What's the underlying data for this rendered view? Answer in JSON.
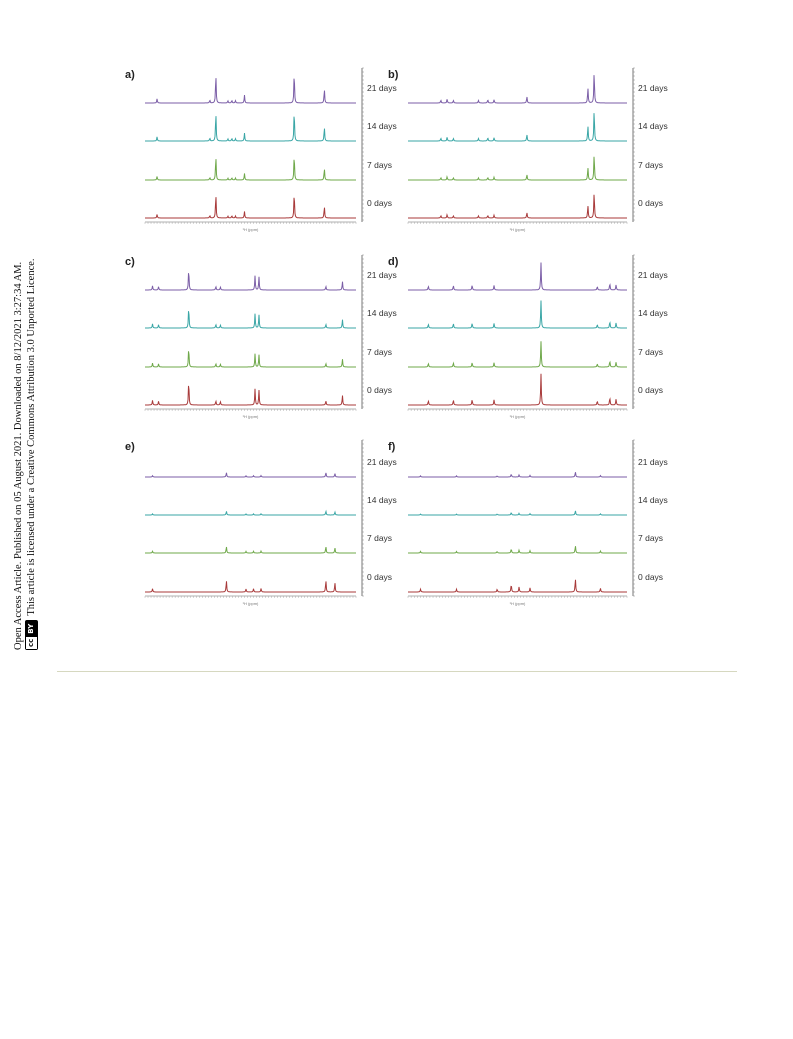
{
  "side_notice": {
    "line1": "Open Access Article. Published on 05 August 2021. Downloaded on 8/12/2021 3:27:34 AM.",
    "line2": "This article is licensed under a Creative Commons Attribution 3.0 Unported Licence.",
    "badge_cc": "cc",
    "badge_by": "BY"
  },
  "colors": {
    "day21": "#7b5ea7",
    "day14": "#3aa6a6",
    "day7": "#6fa84a",
    "day0": "#a83a3a"
  },
  "chart_data": [
    {
      "type": "line",
      "panel": "a)",
      "xlabel": "¹H (ppm)",
      "x_reversed": true,
      "xlim": [
        8.5,
        1.5
      ],
      "series_labels": [
        "21 days",
        "14 days",
        "7 days",
        "0 days"
      ],
      "peaks": [
        {
          "ppm": 8.1,
          "h": 0.15
        },
        {
          "ppm": 6.35,
          "h": 0.12
        },
        {
          "ppm": 6.15,
          "h": 1.0
        },
        {
          "ppm": 5.75,
          "h": 0.08
        },
        {
          "ppm": 5.62,
          "h": 0.08
        },
        {
          "ppm": 5.5,
          "h": 0.08
        },
        {
          "ppm": 5.2,
          "h": 0.25
        },
        {
          "ppm": 3.55,
          "h": 1.0
        },
        {
          "ppm": 2.55,
          "h": 0.45
        }
      ]
    },
    {
      "type": "line",
      "panel": "b)",
      "xlabel": "¹H (ppm)",
      "x_reversed": true,
      "xlim": [
        8.5,
        1.5
      ],
      "series_labels": [
        "21 days",
        "14 days",
        "7 days",
        "0 days"
      ],
      "peaks": [
        {
          "ppm": 7.45,
          "h": 0.1
        },
        {
          "ppm": 7.25,
          "h": 0.12
        },
        {
          "ppm": 7.05,
          "h": 0.1
        },
        {
          "ppm": 6.25,
          "h": 0.08
        },
        {
          "ppm": 5.95,
          "h": 0.1
        },
        {
          "ppm": 5.75,
          "h": 0.12
        },
        {
          "ppm": 4.7,
          "h": 0.25
        },
        {
          "ppm": 2.75,
          "h": 0.55
        },
        {
          "ppm": 2.55,
          "h": 1.0
        }
      ]
    },
    {
      "type": "line",
      "panel": "c)",
      "xlabel": "¹H (ppm)",
      "x_reversed": true,
      "xlim": [
        8.5,
        1.5
      ],
      "series_labels": [
        "21 days",
        "14 days",
        "7 days",
        "0 days"
      ],
      "peaks": [
        {
          "ppm": 8.25,
          "h": 0.15
        },
        {
          "ppm": 8.05,
          "h": 0.15
        },
        {
          "ppm": 7.05,
          "h": 1.0
        },
        {
          "ppm": 6.15,
          "h": 0.15
        },
        {
          "ppm": 6.0,
          "h": 0.15
        },
        {
          "ppm": 4.85,
          "h": 0.55
        },
        {
          "ppm": 4.72,
          "h": 0.6
        },
        {
          "ppm": 2.5,
          "h": 0.15
        },
        {
          "ppm": 1.95,
          "h": 0.3
        }
      ]
    },
    {
      "type": "line",
      "panel": "d)",
      "xlabel": "¹H (ppm)",
      "x_reversed": true,
      "xlim": [
        8.5,
        1.5
      ],
      "series_labels": [
        "21 days",
        "14 days",
        "7 days",
        "0 days"
      ],
      "peaks": [
        {
          "ppm": 7.85,
          "h": 0.15
        },
        {
          "ppm": 7.05,
          "h": 0.2
        },
        {
          "ppm": 6.45,
          "h": 0.2
        },
        {
          "ppm": 5.75,
          "h": 0.2
        },
        {
          "ppm": 4.25,
          "h": 1.0
        },
        {
          "ppm": 2.45,
          "h": 0.15
        },
        {
          "ppm": 2.05,
          "h": 0.3
        },
        {
          "ppm": 1.85,
          "h": 0.2
        }
      ]
    },
    {
      "type": "line",
      "panel": "e)",
      "xlabel": "¹H (ppm)",
      "x_reversed": true,
      "xlim": [
        8.5,
        1.5
      ],
      "series_labels": [
        "21 days",
        "14 days",
        "7 days",
        "0 days"
      ],
      "peaks": [
        {
          "ppm": 8.25,
          "h": 0.1
        },
        {
          "ppm": 5.8,
          "h": 0.4
        },
        {
          "ppm": 5.15,
          "h": 0.1
        },
        {
          "ppm": 4.9,
          "h": 0.1
        },
        {
          "ppm": 4.65,
          "h": 0.1
        },
        {
          "ppm": 2.5,
          "h": 0.4
        },
        {
          "ppm": 2.2,
          "h": 0.3
        }
      ]
    },
    {
      "type": "line",
      "panel": "f)",
      "xlabel": "¹H (ppm)",
      "x_reversed": true,
      "xlim": [
        8.5,
        1.5
      ],
      "series_labels": [
        "21 days",
        "14 days",
        "7 days",
        "0 days"
      ],
      "peaks": [
        {
          "ppm": 8.1,
          "h": 0.1
        },
        {
          "ppm": 6.95,
          "h": 0.08
        },
        {
          "ppm": 5.65,
          "h": 0.08
        },
        {
          "ppm": 5.2,
          "h": 0.25
        },
        {
          "ppm": 4.95,
          "h": 0.15
        },
        {
          "ppm": 4.6,
          "h": 0.12
        },
        {
          "ppm": 3.15,
          "h": 0.45
        },
        {
          "ppm": 2.35,
          "h": 0.15
        }
      ]
    }
  ]
}
